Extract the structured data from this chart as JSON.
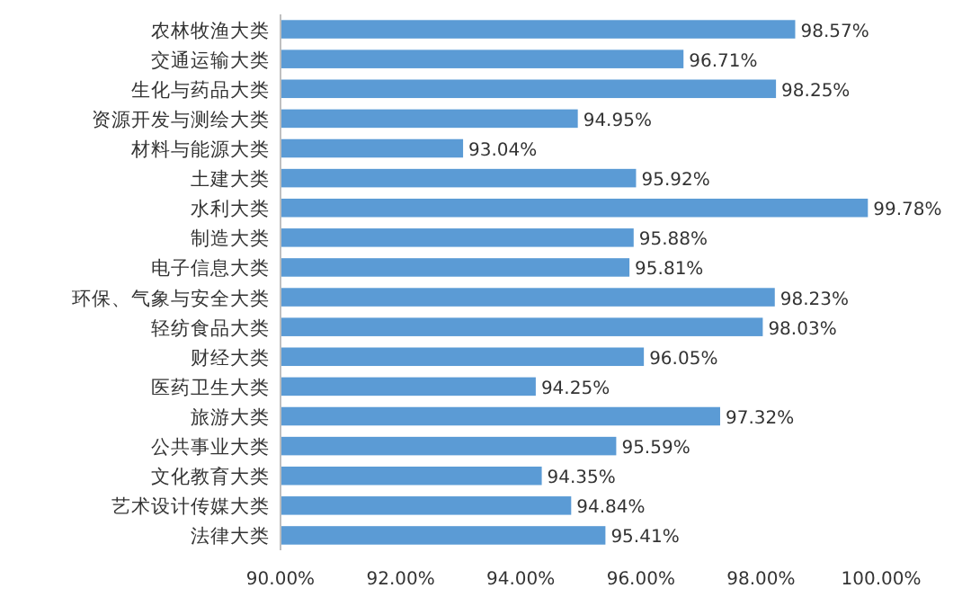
{
  "chart_data": {
    "type": "bar",
    "orientation": "horizontal",
    "color": "#5b9bd5",
    "categories": [
      "农林牧渔大类",
      "交通运输大类",
      "生化与药品大类",
      "资源开发与测绘大类",
      "材料与能源大类",
      "土建大类",
      "水利大类",
      "制造大类",
      "电子信息大类",
      "环保、气象与安全大类",
      "轻纺食品大类",
      "财经大类",
      "医药卫生大类",
      "旅游大类",
      "公共事业大类",
      "文化教育大类",
      "艺术设计传媒大类",
      "法律大类"
    ],
    "values": [
      98.57,
      96.71,
      98.25,
      94.95,
      93.04,
      95.92,
      99.78,
      95.88,
      95.81,
      98.23,
      98.03,
      96.05,
      94.25,
      97.32,
      95.59,
      94.35,
      94.84,
      95.41
    ],
    "value_labels": [
      "98.57%",
      "96.71%",
      "98.25%",
      "94.95%",
      "93.04%",
      "95.92%",
      "99.78%",
      "95.88%",
      "95.81%",
      "98.23%",
      "98.03%",
      "96.05%",
      "94.25%",
      "97.32%",
      "95.59%",
      "94.35%",
      "94.84%",
      "95.41%"
    ],
    "xlim": [
      90,
      100
    ],
    "xticks": [
      {
        "value": 90,
        "label": "90.00%"
      },
      {
        "value": 92,
        "label": "92.00%"
      },
      {
        "value": 94,
        "label": "94.00%"
      },
      {
        "value": 96,
        "label": "96.00%"
      },
      {
        "value": 98,
        "label": "98.00%"
      },
      {
        "value": 100,
        "label": "100.00%"
      }
    ]
  }
}
